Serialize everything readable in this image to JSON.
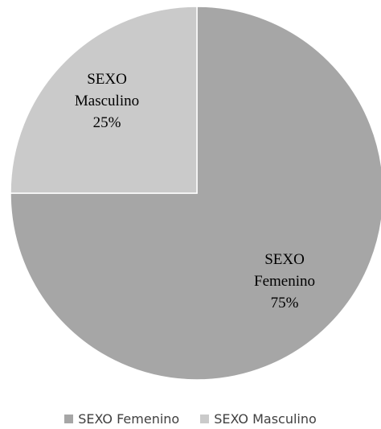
{
  "chart_data": {
    "type": "pie",
    "title": "",
    "categories": [
      "SEXO Femenino",
      "SEXO Masculino"
    ],
    "values": [
      75,
      25
    ],
    "colors": [
      "#a6a6a6",
      "#cacaca"
    ],
    "data_labels": [
      [
        "SEXO",
        "Femenino",
        "75%"
      ],
      [
        "SEXO",
        "Masculino",
        "25%"
      ]
    ],
    "legend_placement": "bottom"
  }
}
